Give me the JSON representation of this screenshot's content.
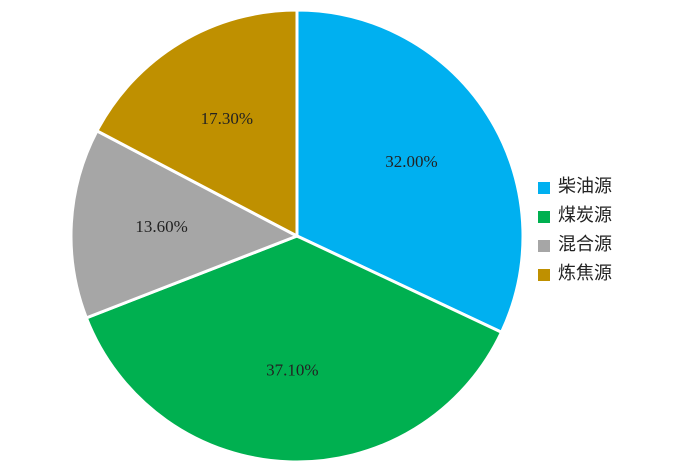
{
  "chart_data": {
    "type": "pie",
    "categories": [
      "柴油源",
      "煤炭源",
      "混合源",
      "炼焦源"
    ],
    "values": [
      32.0,
      37.1,
      13.6,
      17.3
    ],
    "value_labels": [
      "32.00%",
      "37.10%",
      "13.60%",
      "17.30%"
    ],
    "colors": [
      "#00b0f0",
      "#00b050",
      "#a6a6a6",
      "#bf9000"
    ],
    "legend": "right"
  }
}
